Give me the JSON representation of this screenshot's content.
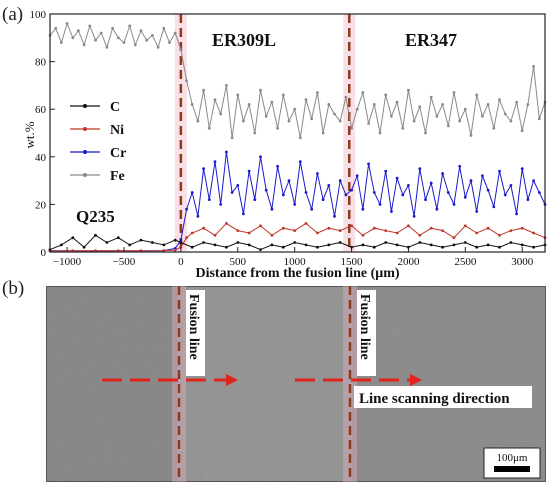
{
  "panel_a": {
    "letter": "(a)"
  },
  "panel_b": {
    "letter": "(b)",
    "fusion_label": "Fusion line",
    "scan_label": "Line scanning direction",
    "scalebar_label": "100μm"
  },
  "colors": {
    "C": "#111111",
    "Ni": "#c0392b",
    "Cr": "#1a1acc",
    "Fe": "#8a8a8a",
    "fusion_line": "#8b3a1e",
    "scan_arrow": "#e0231c"
  },
  "chart_data": {
    "type": "line",
    "title": "",
    "xlabel": "Distance from the fusion line (μm)",
    "ylabel": "wt.%",
    "xlim": [
      -1150,
      3200
    ],
    "ylim": [
      0,
      100
    ],
    "xticks": [
      -1000,
      -500,
      0,
      500,
      1000,
      1500,
      2000,
      2500,
      3000
    ],
    "yticks": [
      0,
      20,
      40,
      60,
      80,
      100
    ],
    "annotations": [
      "ER309L",
      "ER347",
      "Q235"
    ],
    "fusion_lines_x": [
      0,
      1480
    ],
    "legend_position": "center-left",
    "series": [
      {
        "name": "C",
        "marker": "square",
        "x": [
          -1150,
          -1050,
          -950,
          -850,
          -750,
          -650,
          -550,
          -450,
          -350,
          -250,
          -150,
          -50,
          0,
          100,
          200,
          300,
          400,
          500,
          600,
          700,
          800,
          900,
          1000,
          1100,
          1200,
          1300,
          1400,
          1500,
          1600,
          1700,
          1800,
          1900,
          2000,
          2100,
          2200,
          2300,
          2400,
          2500,
          2600,
          2700,
          2800,
          2900,
          3000,
          3100,
          3200
        ],
        "y": [
          1,
          3,
          6,
          2,
          7,
          4,
          6,
          3,
          5,
          4,
          3,
          5,
          4,
          2,
          4,
          3,
          2,
          4,
          3,
          1,
          3,
          2,
          4,
          3,
          2,
          3,
          4,
          2,
          3,
          2,
          4,
          3,
          2,
          4,
          3,
          2,
          3,
          4,
          2,
          3,
          2,
          4,
          3,
          2,
          3
        ]
      },
      {
        "name": "Ni",
        "marker": "circle",
        "x": [
          -1150,
          -950,
          -750,
          -550,
          -350,
          -150,
          -50,
          0,
          50,
          100,
          200,
          300,
          400,
          500,
          600,
          700,
          800,
          900,
          1000,
          1100,
          1200,
          1300,
          1400,
          1500,
          1600,
          1700,
          1800,
          1900,
          2000,
          2100,
          2200,
          2300,
          2400,
          2500,
          2600,
          2700,
          2800,
          2900,
          3000,
          3100,
          3200
        ],
        "y": [
          0.5,
          0.5,
          0.6,
          0.5,
          0.5,
          0.6,
          0.8,
          2,
          6,
          8,
          10,
          7,
          12,
          9,
          8,
          11,
          7,
          10,
          9,
          12,
          8,
          10,
          9,
          11,
          7,
          10,
          9,
          8,
          11,
          7,
          10,
          9,
          6,
          11,
          8,
          10,
          7,
          9,
          10,
          8,
          6
        ]
      },
      {
        "name": "Cr",
        "marker": "triangle",
        "x": [
          -1150,
          -950,
          -750,
          -550,
          -350,
          -150,
          -50,
          0,
          50,
          100,
          150,
          200,
          250,
          300,
          350,
          400,
          450,
          500,
          550,
          600,
          650,
          700,
          750,
          800,
          850,
          900,
          950,
          1000,
          1050,
          1100,
          1150,
          1200,
          1250,
          1300,
          1350,
          1400,
          1450,
          1500,
          1550,
          1600,
          1650,
          1700,
          1750,
          1800,
          1850,
          1900,
          1950,
          2000,
          2050,
          2100,
          2150,
          2200,
          2250,
          2300,
          2350,
          2400,
          2450,
          2500,
          2550,
          2600,
          2650,
          2700,
          2750,
          2800,
          2850,
          2900,
          2950,
          3000,
          3050,
          3100,
          3150,
          3200
        ],
        "y": [
          0.5,
          0.5,
          0.4,
          0.5,
          0.5,
          0.6,
          1.5,
          5,
          18,
          25,
          15,
          35,
          22,
          38,
          20,
          42,
          25,
          28,
          16,
          34,
          22,
          40,
          26,
          18,
          36,
          24,
          30,
          20,
          38,
          25,
          18,
          33,
          22,
          28,
          15,
          30,
          24,
          26,
          32,
          18,
          37,
          25,
          20,
          34,
          17,
          31,
          24,
          28,
          15,
          35,
          22,
          29,
          18,
          33,
          25,
          20,
          36,
          23,
          30,
          17,
          32,
          26,
          19,
          34,
          24,
          28,
          16,
          35,
          22,
          30,
          25,
          20
        ]
      },
      {
        "name": "Fe",
        "marker": "triangle-down",
        "x": [
          -1150,
          -1100,
          -1050,
          -1000,
          -950,
          -900,
          -850,
          -800,
          -750,
          -700,
          -650,
          -600,
          -550,
          -500,
          -450,
          -400,
          -350,
          -300,
          -250,
          -200,
          -150,
          -100,
          -50,
          0,
          50,
          100,
          150,
          200,
          250,
          300,
          350,
          400,
          450,
          500,
          550,
          600,
          650,
          700,
          750,
          800,
          850,
          900,
          950,
          1000,
          1050,
          1100,
          1150,
          1200,
          1250,
          1300,
          1350,
          1400,
          1450,
          1500,
          1550,
          1600,
          1650,
          1700,
          1750,
          1800,
          1850,
          1900,
          1950,
          2000,
          2050,
          2100,
          2150,
          2200,
          2250,
          2300,
          2350,
          2400,
          2450,
          2500,
          2550,
          2600,
          2650,
          2700,
          2750,
          2800,
          2850,
          2900,
          2950,
          3000,
          3050,
          3100,
          3150,
          3200
        ],
        "y": [
          91,
          94,
          88,
          96,
          90,
          93,
          87,
          95,
          89,
          92,
          86,
          94,
          90,
          88,
          95,
          87,
          93,
          89,
          91,
          86,
          94,
          88,
          92,
          85,
          72,
          62,
          55,
          68,
          52,
          64,
          58,
          70,
          48,
          66,
          55,
          62,
          50,
          68,
          57,
          63,
          52,
          66,
          55,
          60,
          48,
          64,
          56,
          67,
          50,
          62,
          58,
          55,
          65,
          52,
          60,
          67,
          54,
          62,
          50,
          66,
          57,
          63,
          52,
          68,
          55,
          61,
          50,
          65,
          57,
          62,
          53,
          67,
          55,
          60,
          49,
          66,
          57,
          62,
          52,
          64,
          58,
          55,
          63,
          51,
          62,
          78,
          56,
          63
        ]
      }
    ]
  }
}
